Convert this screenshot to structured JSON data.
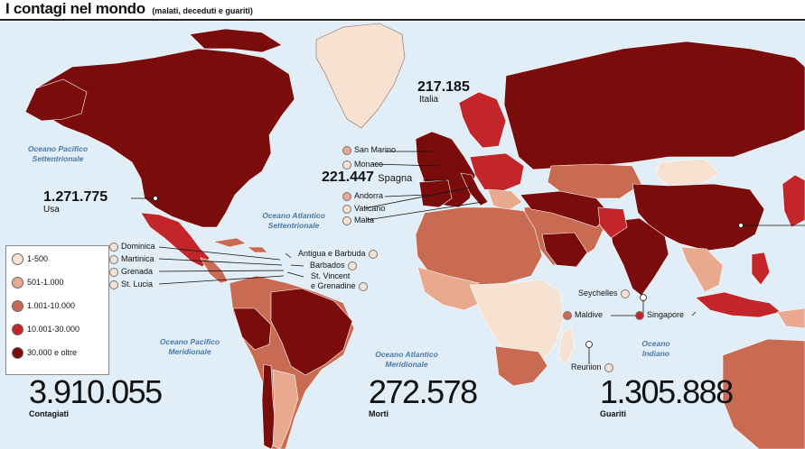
{
  "header": {
    "title": "I contagi nel mondo",
    "subtitle": "(malati, deceduti e guariti)"
  },
  "colors": {
    "ocean": "#e2eef7",
    "band_1": "#f7e2d2",
    "band_2": "#e8a98e",
    "band_3": "#c96a52",
    "band_4": "#c2262b",
    "band_5": "#7a0c0c"
  },
  "oceans": {
    "north_pacific": [
      "Oceano Pacifico",
      "Settentrionale"
    ],
    "north_atlantic": [
      "Oceano Atlantico",
      "Settentrionale"
    ],
    "south_pacific": [
      "Oceano Pacifico",
      "Meridionale"
    ],
    "south_atlantic": [
      "Oceano Atlantico",
      "Meridionale"
    ],
    "indian": [
      "Oceano",
      "Indiano"
    ]
  },
  "callouts": {
    "italy": {
      "value": "217.185",
      "label": "Italia"
    },
    "spain": {
      "value": "221.447",
      "label": "Spagna"
    },
    "usa": {
      "value": "1.271.775",
      "label": "Usa"
    }
  },
  "small_states": {
    "san_marino": "San Marino",
    "monaco": "Monaco",
    "andorra": "Andorra",
    "vaticano": "Vaticano",
    "malta": "Malta",
    "dominica": "Dominica",
    "martinica": "Martinica",
    "grenada": "Grenada",
    "st_lucia": "St. Lucia",
    "antigua": "Antigua e Barbuda",
    "barbados": "Barbados",
    "st_vincent": "St. Vincent",
    "grenadine": "e Grenadine",
    "seychelles": "Seychelles",
    "maldive": "Maldive",
    "singapore": "Singapore",
    "reunion": "Reunion"
  },
  "legend": {
    "items": [
      {
        "label": "1-500"
      },
      {
        "label": "501-1.000"
      },
      {
        "label": "1.001-10.000"
      },
      {
        "label": "10.001-30.000"
      },
      {
        "label": "30.000  e oltre"
      }
    ]
  },
  "stats": {
    "contagiati": {
      "value": "3.910.055",
      "label": "Contagiati"
    },
    "morti": {
      "value": "272.578",
      "label": "Morti"
    },
    "guariti": {
      "value": "1.305.888",
      "label": "Guariti"
    }
  }
}
